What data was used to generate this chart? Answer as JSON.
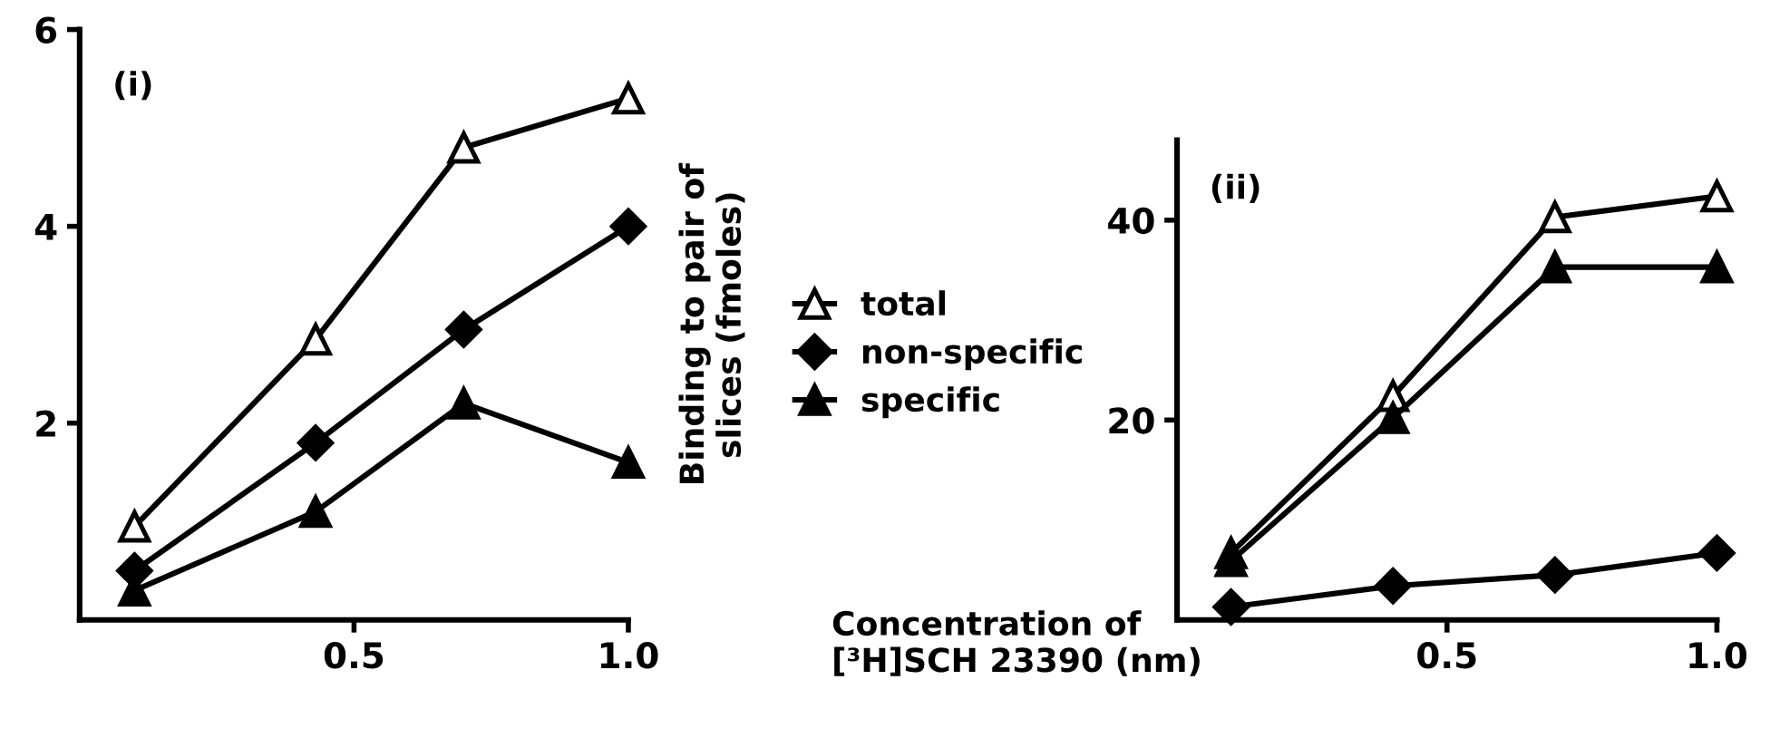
{
  "chart_data": [
    {
      "type": "line",
      "title": "(i)",
      "ylabel": "Binding to pair of\nslices (fmoles)",
      "legend": "right",
      "x": [
        0.1,
        0.43,
        0.7,
        1.0
      ],
      "xlim": [
        0,
        1.0
      ],
      "xticks": [
        0.5,
        {
          "value": 1.0,
          "label": "1.0"
        }
      ],
      "ylim": [
        0,
        6
      ],
      "yticks": [
        2,
        4,
        6
      ],
      "series": [
        {
          "name": "total",
          "color": "#000000",
          "marker": "triangle-open",
          "values": [
            0.95,
            2.85,
            4.8,
            5.3
          ]
        },
        {
          "name": "non-specific",
          "color": "#000000",
          "marker": "diamond",
          "values": [
            0.5,
            1.8,
            2.95,
            4.0
          ]
        },
        {
          "name": "specific",
          "color": "#000000",
          "marker": "triangle",
          "values": [
            0.3,
            1.1,
            2.2,
            1.6
          ]
        }
      ]
    },
    {
      "type": "line",
      "title": "(ii)",
      "xlabel": "Concentration of\n[³H]SCH 23390 (nm)",
      "x": [
        0.1,
        0.4,
        0.7,
        1.0
      ],
      "xlim": [
        0,
        1.0
      ],
      "xticks": [
        0.5,
        {
          "value": 1.0,
          "label": "1.0"
        }
      ],
      "ylim": [
        0,
        48
      ],
      "yticks": [
        20,
        40
      ],
      "series": [
        {
          "color": "#000000",
          "marker": "triangle-open",
          "values": [
            6.7,
            22.4,
            40.3,
            42.4
          ]
        },
        {
          "color": "#000000",
          "marker": "diamond",
          "values": [
            1.3,
            3.4,
            4.5,
            6.7
          ]
        },
        {
          "color": "#000000",
          "marker": "triangle",
          "values": [
            5.9,
            20.2,
            35.3,
            35.3
          ]
        }
      ]
    }
  ]
}
